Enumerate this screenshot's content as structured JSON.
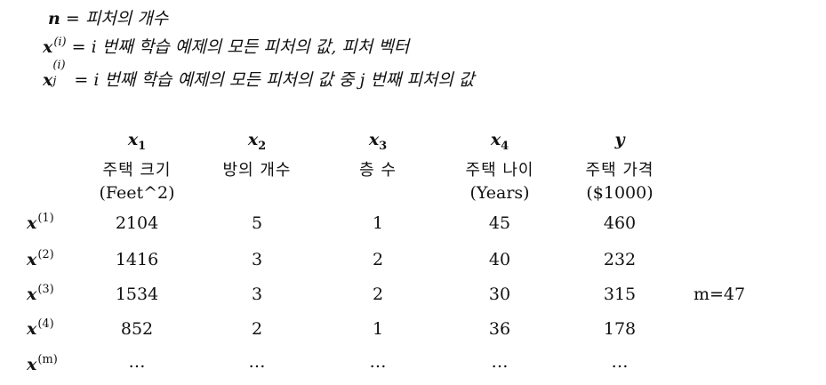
{
  "definitions": {
    "line1": {
      "var": "n",
      "text": " = 피처의 개수"
    },
    "line2": {
      "var": "x",
      "sup": "(i)",
      "text": " = i 번째 학습 예제의 모든 피처의 값, 피처 벡터"
    },
    "line3": {
      "var": "x",
      "sup": "(i)",
      "sub": "j",
      "text": " = i 번째 학습 예제의 모든 피처의 값 중 j 번째 피처의 값"
    }
  },
  "table": {
    "columns": [
      {
        "var": "x",
        "sub": "1",
        "name": "주택 크기",
        "unit": "(Feet^2)"
      },
      {
        "var": "x",
        "sub": "2",
        "name": "방의 개수",
        "unit": ""
      },
      {
        "var": "x",
        "sub": "3",
        "name": "층 수",
        "unit": ""
      },
      {
        "var": "x",
        "sub": "4",
        "name": "주택 나이",
        "unit": "(Years)"
      },
      {
        "var": "y",
        "sub": "",
        "name": "주택 가격",
        "unit": "($1000)"
      }
    ],
    "rows": [
      {
        "label": "x",
        "sup": "(1)",
        "values": [
          "2104",
          "5",
          "1",
          "45",
          "460"
        ]
      },
      {
        "label": "x",
        "sup": "(2)",
        "values": [
          "1416",
          "3",
          "2",
          "40",
          "232"
        ]
      },
      {
        "label": "x",
        "sup": "(3)",
        "values": [
          "1534",
          "3",
          "2",
          "30",
          "315"
        ]
      },
      {
        "label": "x",
        "sup": "(4)",
        "values": [
          "852",
          "2",
          "1",
          "36",
          "178"
        ]
      },
      {
        "label": "x",
        "sup": "(m)",
        "values": [
          "…",
          "…",
          "…",
          "…",
          "…"
        ]
      }
    ],
    "m_note": "m=47"
  }
}
